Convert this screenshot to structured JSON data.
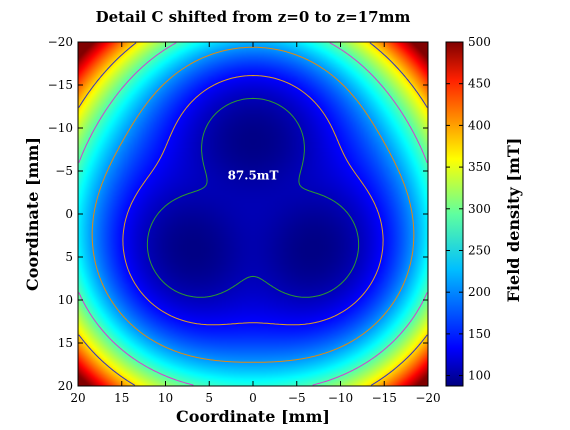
{
  "chart_data": {
    "type": "heatmap",
    "title": "Detail C shifted from z=0 to z=17mm",
    "xlabel": "Coordinate [mm]",
    "ylabel": "Coordinate [mm]",
    "xlim": [
      20,
      -20
    ],
    "ylim": [
      20,
      -20
    ],
    "x_ticks": [
      "20",
      "15",
      "10",
      "5",
      "0",
      "−5",
      "−10",
      "−15",
      "−20"
    ],
    "y_ticks": [
      "−20",
      "−15",
      "−10",
      "−5",
      "0",
      "5",
      "10",
      "15",
      "20"
    ],
    "colorbar": {
      "label": "Field density [mT]",
      "range": [
        87.5,
        500
      ],
      "ticks": [
        "500",
        "450",
        "400",
        "350",
        "300",
        "250",
        "200",
        "150",
        "100"
      ],
      "colormap": "jet"
    },
    "annotation": {
      "text": "87.5mT",
      "x": 0,
      "y": -4.5
    },
    "min_regions": [
      {
        "name": "top",
        "center_x": 0,
        "center_y": -9.5,
        "value_mT": 87.5
      },
      {
        "name": "lower-left",
        "center_x": 7.5,
        "center_y": 4.5,
        "value_mT": 87.5
      },
      {
        "name": "lower-right",
        "center_x": -7.5,
        "center_y": 4.5,
        "value_mT": 87.5
      }
    ],
    "grid": false
  }
}
